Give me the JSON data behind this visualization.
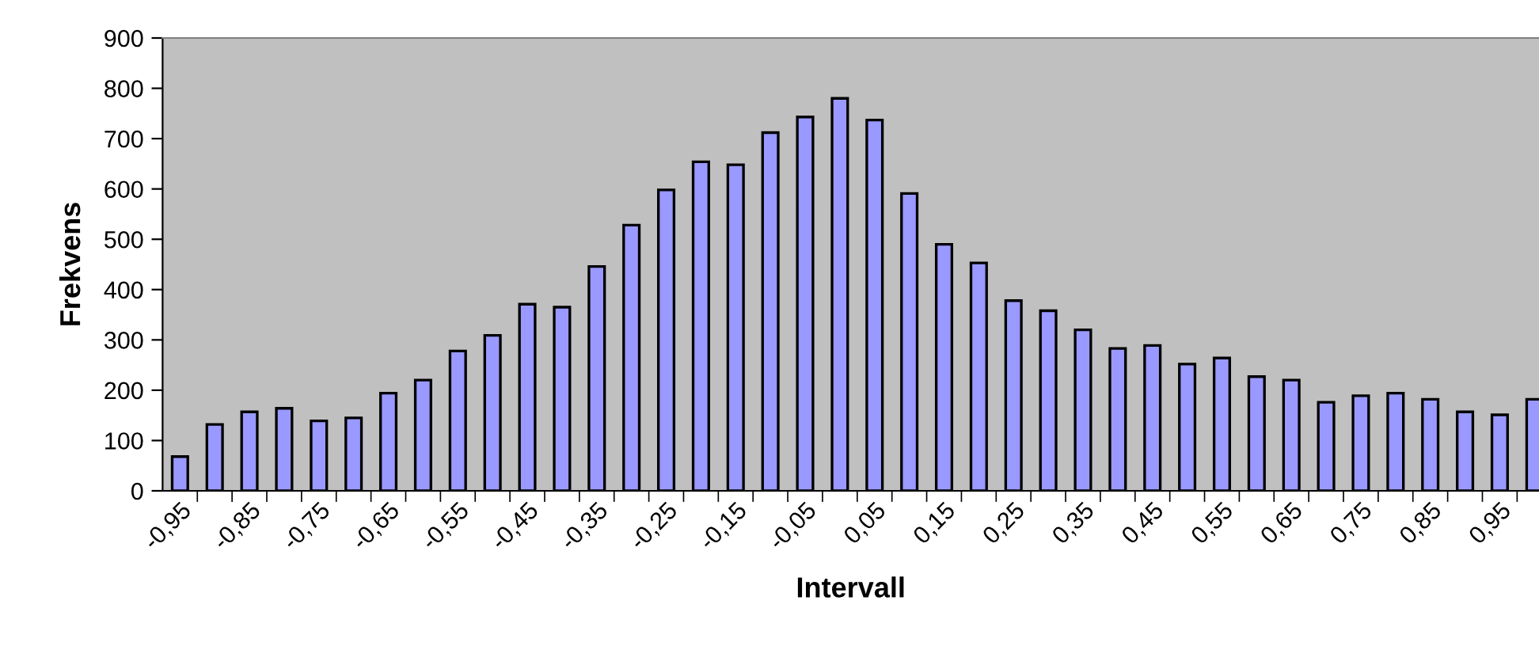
{
  "chart_data": {
    "type": "bar",
    "xlabel": "Intervall",
    "ylabel": "Frekvens",
    "categories": [
      "-0,95",
      null,
      "-0,85",
      null,
      "-0,75",
      null,
      "-0,65",
      null,
      "-0,55",
      null,
      "-0,45",
      null,
      "-0,35",
      null,
      "-0,25",
      null,
      "-0,15",
      null,
      "-0,05",
      null,
      "0,05",
      null,
      "0,15",
      null,
      "0,25",
      null,
      "0,35",
      null,
      "0,45",
      null,
      "0,55",
      null,
      "0,65",
      null,
      "0,75",
      null,
      "0,85",
      null,
      "0,95",
      null
    ],
    "values": [
      68,
      132,
      157,
      164,
      139,
      145,
      194,
      220,
      278,
      309,
      371,
      365,
      446,
      528,
      598,
      654,
      648,
      712,
      743,
      780,
      737,
      591,
      490,
      453,
      378,
      358,
      320,
      283,
      289,
      252,
      264,
      227,
      220,
      176,
      189,
      194,
      182,
      157,
      151,
      182
    ],
    "color": "#9999ff",
    "ylim": [
      0,
      900
    ],
    "yticks": [
      0,
      100,
      200,
      300,
      400,
      500,
      600,
      700,
      800,
      900
    ],
    "grid": false,
    "legend": false
  }
}
